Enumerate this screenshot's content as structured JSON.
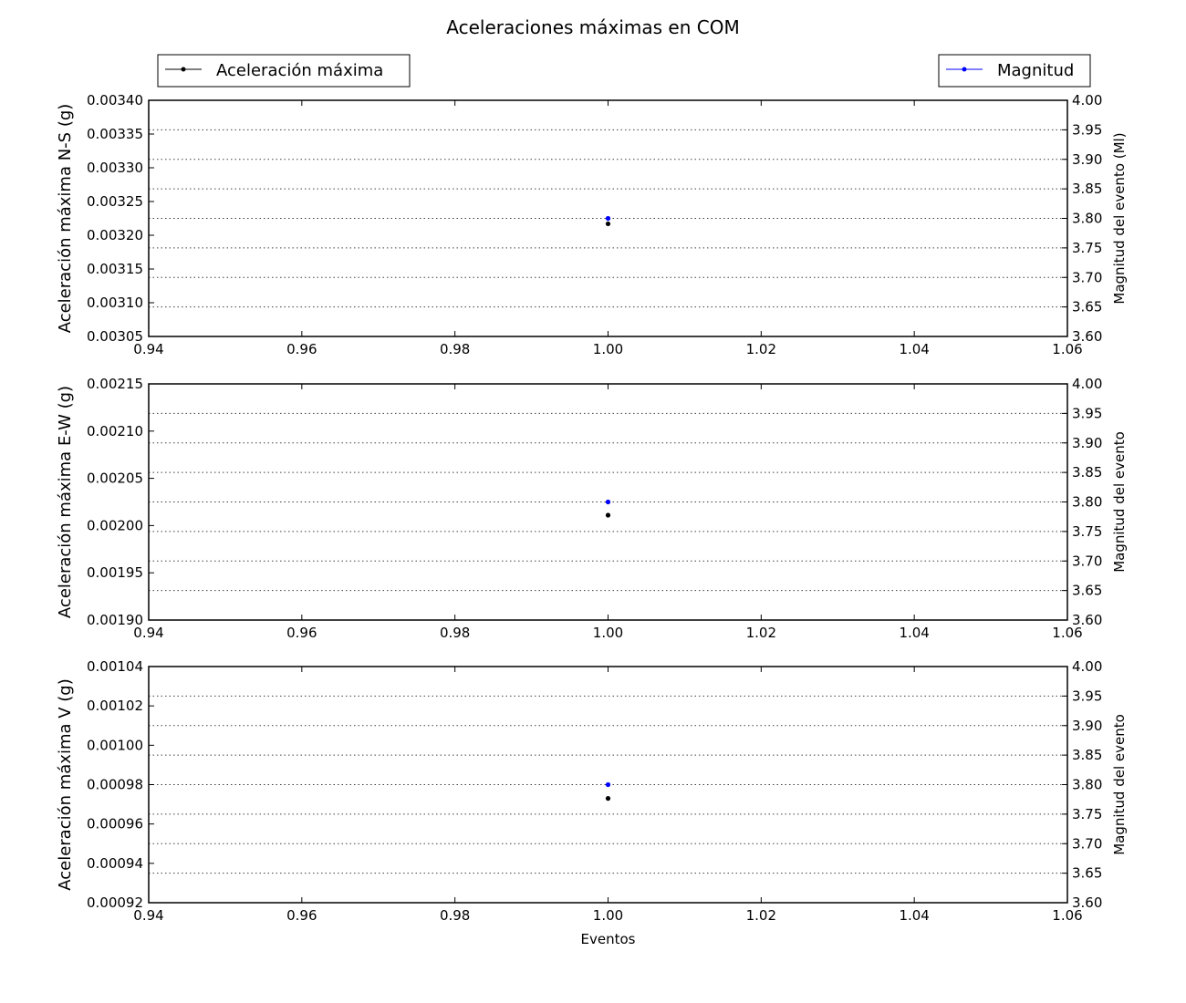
{
  "figure": {
    "title": "Aceleraciones máximas en COM",
    "legend_left": {
      "label": "Aceleración máxima",
      "color": "#000000",
      "placement": "top-left"
    },
    "legend_right": {
      "label": "Magnitud",
      "color": "#0000ff",
      "placement": "top-right"
    }
  },
  "chart_data": [
    {
      "type": "scatter",
      "title": "",
      "xlabel": "",
      "ylabel": "Aceleración máxima N-S (g)",
      "y2label": "Magnitud del evento (Ml)",
      "xlim": [
        0.94,
        1.06
      ],
      "ylim": [
        0.00305,
        0.0034
      ],
      "y2lim": [
        3.6,
        4.0
      ],
      "x_ticks": [
        "0.94",
        "0.96",
        "0.98",
        "1.00",
        "1.02",
        "1.04",
        "1.06"
      ],
      "y_ticks": [
        "0.00305",
        "0.00310",
        "0.00315",
        "0.00320",
        "0.00325",
        "0.00330",
        "0.00335",
        "0.00340"
      ],
      "y2_ticks": [
        "3.60",
        "3.65",
        "3.70",
        "3.75",
        "3.80",
        "3.85",
        "3.90",
        "3.95",
        "4.00"
      ],
      "grid": "right-axis horizontal dotted",
      "series": [
        {
          "name": "Aceleración máxima",
          "axis": "left",
          "color": "#000000",
          "x": [
            1.0
          ],
          "y": [
            0.003217
          ]
        },
        {
          "name": "Magnitud",
          "axis": "right",
          "color": "#0000ff",
          "x": [
            1.0
          ],
          "y": [
            3.8
          ]
        }
      ]
    },
    {
      "type": "scatter",
      "title": "",
      "xlabel": "",
      "ylabel": "Aceleración máxima E-W (g)",
      "y2label": "Magnitud del evento",
      "xlim": [
        0.94,
        1.06
      ],
      "ylim": [
        0.0019,
        0.00215
      ],
      "y2lim": [
        3.6,
        4.0
      ],
      "x_ticks": [
        "0.94",
        "0.96",
        "0.98",
        "1.00",
        "1.02",
        "1.04",
        "1.06"
      ],
      "y_ticks": [
        "0.00190",
        "0.00195",
        "0.00200",
        "0.00205",
        "0.00210",
        "0.00215"
      ],
      "y2_ticks": [
        "3.60",
        "3.65",
        "3.70",
        "3.75",
        "3.80",
        "3.85",
        "3.90",
        "3.95",
        "4.00"
      ],
      "grid": "right-axis horizontal dotted",
      "series": [
        {
          "name": "Aceleración máxima",
          "axis": "left",
          "color": "#000000",
          "x": [
            1.0
          ],
          "y": [
            0.002011
          ]
        },
        {
          "name": "Magnitud",
          "axis": "right",
          "color": "#0000ff",
          "x": [
            1.0
          ],
          "y": [
            3.8
          ]
        }
      ]
    },
    {
      "type": "scatter",
      "title": "",
      "xlabel": "Eventos",
      "ylabel": "Aceleración máxima V (g)",
      "y2label": "Magnitud del evento",
      "xlim": [
        0.94,
        1.06
      ],
      "ylim": [
        0.00092,
        0.00104
      ],
      "y2lim": [
        3.6,
        4.0
      ],
      "x_ticks": [
        "0.94",
        "0.96",
        "0.98",
        "1.00",
        "1.02",
        "1.04",
        "1.06"
      ],
      "y_ticks": [
        "0.00092",
        "0.00094",
        "0.00096",
        "0.00098",
        "0.00100",
        "0.00102",
        "0.00104"
      ],
      "y2_ticks": [
        "3.60",
        "3.65",
        "3.70",
        "3.75",
        "3.80",
        "3.85",
        "3.90",
        "3.95",
        "4.00"
      ],
      "grid": "right-axis horizontal dotted",
      "series": [
        {
          "name": "Aceleración máxima",
          "axis": "left",
          "color": "#000000",
          "x": [
            1.0
          ],
          "y": [
            0.000973
          ]
        },
        {
          "name": "Magnitud",
          "axis": "right",
          "color": "#0000ff",
          "x": [
            1.0
          ],
          "y": [
            3.8
          ]
        }
      ]
    }
  ]
}
